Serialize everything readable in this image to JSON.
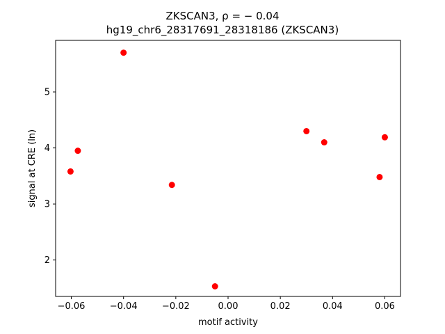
{
  "chart_data": {
    "type": "scatter",
    "title": "ZKSCAN3, ρ = − 0.04",
    "subtitle": "hg19_chr6_28317691_28318186 (ZKSCAN3)",
    "xlabel": "motif activity",
    "ylabel": "signal at CRE (ln)",
    "xlim": [
      -0.066,
      0.066
    ],
    "ylim": [
      1.35,
      5.92
    ],
    "xticks": [
      -0.06,
      -0.04,
      -0.02,
      0.0,
      0.02,
      0.04,
      0.06
    ],
    "xtick_labels": [
      "−0.06",
      "−0.04",
      "−0.02",
      "0.00",
      "0.02",
      "0.04",
      "0.06"
    ],
    "yticks": [
      2,
      3,
      4,
      5
    ],
    "ytick_labels": [
      "2",
      "3",
      "4",
      "5"
    ],
    "grid": false,
    "marker_color": "#ff0000",
    "points": [
      {
        "x": -0.0603,
        "y": 3.58
      },
      {
        "x": -0.0575,
        "y": 3.95
      },
      {
        "x": -0.04,
        "y": 5.7
      },
      {
        "x": -0.0215,
        "y": 3.34
      },
      {
        "x": -0.005,
        "y": 1.53
      },
      {
        "x": 0.03,
        "y": 4.3
      },
      {
        "x": 0.0368,
        "y": 4.1
      },
      {
        "x": 0.058,
        "y": 3.48
      },
      {
        "x": 0.06,
        "y": 4.19
      }
    ]
  }
}
